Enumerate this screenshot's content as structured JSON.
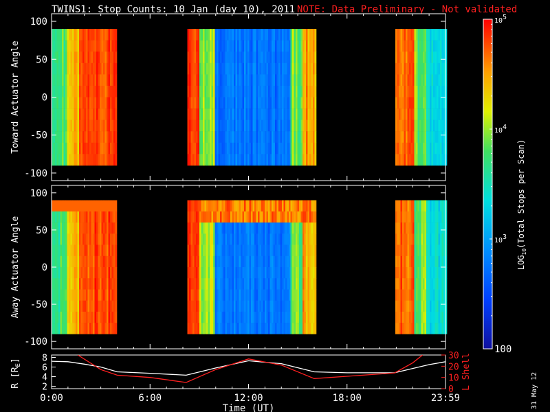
{
  "title": "TWINS1: Stop Counts: 10 Jan (day  10), 2011",
  "note": "NOTE: Data Preliminary - Not validated",
  "side_stamp": "31 May 12",
  "colors": {
    "background": "#000000",
    "axis": "#ffffff",
    "note": "#ff2020",
    "lshell": "#ff2020",
    "radius": "#ffffff"
  },
  "chart_data": [
    {
      "type": "heatmap",
      "panel": "toward",
      "ylabel": "Toward Actuator Angle",
      "ylim": [
        -110,
        110
      ],
      "yticks": [
        "100",
        "50",
        "0",
        "-50",
        "-100"
      ],
      "ytick_values": [
        100,
        50,
        0,
        -50,
        -100
      ],
      "x_range_hours": [
        0,
        24
      ],
      "y_data_range": [
        -90,
        90
      ],
      "data_intervals_hours": [
        [
          0.0,
          3.9
        ],
        [
          8.2,
          16.1
        ],
        [
          20.9,
          24.0
        ]
      ],
      "colorscale": "log10 counts (rainbow)"
    },
    {
      "type": "heatmap",
      "panel": "away",
      "ylabel": "Away Actuator Angle",
      "ylim": [
        -110,
        110
      ],
      "yticks": [
        "100",
        "50",
        "0",
        "-50",
        "-100"
      ],
      "ytick_values": [
        100,
        50,
        0,
        -50,
        -100
      ],
      "x_range_hours": [
        0,
        24
      ],
      "y_data_range": [
        -90,
        90
      ],
      "data_intervals_hours": [
        [
          0.0,
          3.9
        ],
        [
          8.2,
          16.1
        ],
        [
          20.9,
          24.0
        ]
      ],
      "colorscale": "log10 counts (rainbow)"
    },
    {
      "type": "line",
      "panel": "orbit",
      "xlabel": "Time (UT)",
      "xticks": [
        "0:00",
        "6:00",
        "12:00",
        "18:00",
        "23:59"
      ],
      "xtick_values": [
        0,
        6,
        12,
        18,
        24
      ],
      "left_axis": {
        "label_prefix": "R [R",
        "label_sub": "E",
        "label_suffix": "]",
        "ticks": [
          "8",
          "6",
          "4",
          "2"
        ],
        "tick_values": [
          8,
          6,
          4,
          2
        ],
        "ylim": [
          1.5,
          8.5
        ]
      },
      "right_axis": {
        "label": "L Shell",
        "ticks": [
          "30",
          "20",
          "10",
          "0"
        ],
        "tick_values": [
          30,
          20,
          10,
          0
        ],
        "ylim": [
          0,
          30
        ]
      },
      "series": [
        {
          "axis": "left",
          "x": [
            0,
            1,
            2,
            3,
            4,
            6,
            8.2,
            10,
            12,
            14,
            16,
            18,
            20.9,
            22,
            23,
            24
          ],
          "y": [
            7.2,
            7.1,
            6.6,
            6.0,
            5.0,
            4.7,
            4.3,
            5.8,
            7.3,
            6.7,
            5.0,
            4.8,
            4.8,
            5.7,
            6.5,
            7.1
          ]
        },
        {
          "axis": "right",
          "x": [
            1.6,
            3,
            4,
            6,
            8.2,
            10,
            12,
            14,
            16,
            18,
            20.9,
            22,
            22.6
          ],
          "y": [
            30,
            17,
            12,
            10,
            5.5,
            17,
            26.5,
            21,
            9,
            11,
            14,
            23,
            30
          ]
        }
      ]
    },
    {
      "type": "colorbar",
      "label_prefix": "LOG",
      "label_sub": "10",
      "label_suffix": "(Total Stops per Scan)",
      "ticks": [
        {
          "base": "10",
          "exp": "5",
          "value": 100000
        },
        {
          "base": "10",
          "exp": "4",
          "value": 10000
        },
        {
          "base": "10",
          "exp": "3",
          "value": 1000
        },
        {
          "base": "100",
          "exp": "",
          "value": 100
        }
      ]
    }
  ]
}
